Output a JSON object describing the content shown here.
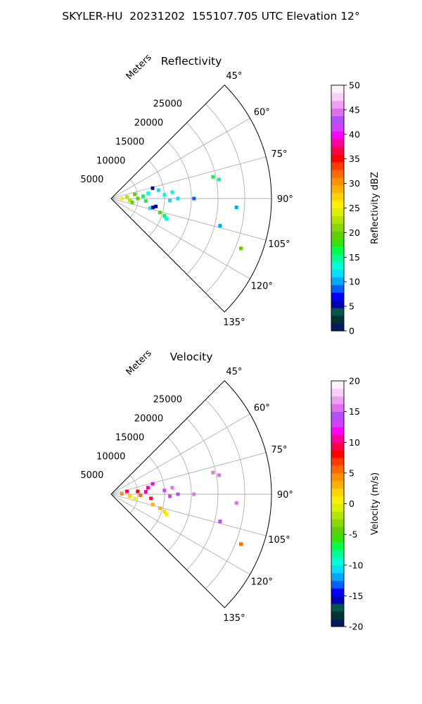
{
  "title": "SKYLER-HU  20231202  155107.705 UTC Elevation 12°",
  "chart_data": [
    {
      "type": "polar-scatter",
      "title": "Reflectivity",
      "radial_label": "Meters",
      "radial_ticks": [
        5000,
        10000,
        15000,
        20000,
        25000
      ],
      "radial_max": 30000,
      "azimuth_range_deg": [
        45,
        135
      ],
      "azimuth_ticks": [
        "45°",
        "60°",
        "75°",
        "90°",
        "105°",
        "120°",
        "135°"
      ],
      "grid": true,
      "colorbar": {
        "label": "Reflectivity dBZ",
        "min": 0,
        "max": 50,
        "ticks": [
          0,
          5,
          10,
          15,
          20,
          25,
          30,
          35,
          40,
          45,
          50
        ],
        "colors": [
          "#041a5e",
          "#003333",
          "#04554b",
          "#0000b0",
          "#0000ff",
          "#0060ff",
          "#00a8ff",
          "#00e0ff",
          "#00ffd8",
          "#00ff90",
          "#00ff4a",
          "#36e40a",
          "#5ed003",
          "#8ad800",
          "#b4e400",
          "#dcef00",
          "#fff000",
          "#ffd400",
          "#ffb000",
          "#ff9000",
          "#ff6a00",
          "#ff3c00",
          "#ff0000",
          "#ff0048",
          "#ff00a0",
          "#ff00ff",
          "#d040ff",
          "#b050ff",
          "#e070f0",
          "#f0a0f0",
          "#f8d0f8",
          "#fff0ff"
        ]
      },
      "points": [
        {
          "r": 5000,
          "az": 90,
          "v": 20
        },
        {
          "r": 2000,
          "az": 90,
          "v": 25
        },
        {
          "r": 3000,
          "az": 84,
          "v": 22
        },
        {
          "r": 3500,
          "az": 96,
          "v": 23
        },
        {
          "r": 4000,
          "az": 100,
          "v": 19
        },
        {
          "r": 4500,
          "az": 80,
          "v": 19
        },
        {
          "r": 6000,
          "az": 86,
          "v": 16
        },
        {
          "r": 6500,
          "az": 94,
          "v": 17
        },
        {
          "r": 7000,
          "az": 82,
          "v": 14
        },
        {
          "r": 7500,
          "az": 104,
          "v": 12
        },
        {
          "r": 8000,
          "az": 102,
          "v": 6
        },
        {
          "r": 8500,
          "az": 100,
          "v": 5
        },
        {
          "r": 8000,
          "az": 76,
          "v": 6
        },
        {
          "r": 9000,
          "az": 80,
          "v": 12
        },
        {
          "r": 9500,
          "az": 106,
          "v": 18
        },
        {
          "r": 10500,
          "az": 108,
          "v": 17
        },
        {
          "r": 11000,
          "az": 110,
          "v": 13
        },
        {
          "r": 10000,
          "az": 86,
          "v": 14
        },
        {
          "r": 11500,
          "az": 84,
          "v": 13
        },
        {
          "r": 11000,
          "az": 92,
          "v": 12
        },
        {
          "r": 12500,
          "az": 90,
          "v": 11
        },
        {
          "r": 15500,
          "az": 90,
          "v": 9
        },
        {
          "r": 20500,
          "az": 80,
          "v": 15
        },
        {
          "r": 19500,
          "az": 78,
          "v": 16
        },
        {
          "r": 23500,
          "az": 94,
          "v": 10
        },
        {
          "r": 21000,
          "az": 104,
          "v": 10
        },
        {
          "r": 26000,
          "az": 111,
          "v": 20
        }
      ]
    },
    {
      "type": "polar-scatter",
      "title": "Velocity",
      "radial_label": "Meters",
      "radial_ticks": [
        5000,
        10000,
        15000,
        20000,
        25000
      ],
      "radial_max": 30000,
      "azimuth_range_deg": [
        45,
        135
      ],
      "azimuth_ticks": [
        "45°",
        "60°",
        "75°",
        "90°",
        "105°",
        "120°",
        "135°"
      ],
      "grid": true,
      "colorbar": {
        "label": "Velocity (m/s)",
        "min": -20,
        "max": 20,
        "ticks": [
          -20,
          -15,
          -10,
          -5,
          0,
          5,
          10,
          15,
          20
        ],
        "colors": [
          "#041a5e",
          "#003333",
          "#04554b",
          "#0000b0",
          "#0000ff",
          "#0060ff",
          "#00a8ff",
          "#00e0ff",
          "#00ffd8",
          "#00ff90",
          "#00ff4a",
          "#36e40a",
          "#5ed003",
          "#8ad800",
          "#b4e400",
          "#dcef00",
          "#fff000",
          "#ffd400",
          "#ffb000",
          "#ff9000",
          "#ff6a00",
          "#ff3c00",
          "#ff0000",
          "#ff0048",
          "#ff00a0",
          "#ff00ff",
          "#d040ff",
          "#b050ff",
          "#e070f0",
          "#f0a0f0",
          "#f8d0f8",
          "#fff0ff"
        ]
      },
      "points": [
        {
          "r": 2000,
          "az": 88,
          "v": 4
        },
        {
          "r": 3000,
          "az": 80,
          "v": 9
        },
        {
          "r": 3500,
          "az": 96,
          "v": 2
        },
        {
          "r": 4500,
          "az": 100,
          "v": 1
        },
        {
          "r": 5000,
          "az": 84,
          "v": 8
        },
        {
          "r": 5500,
          "az": 92,
          "v": 6
        },
        {
          "r": 6500,
          "az": 86,
          "v": 10
        },
        {
          "r": 7000,
          "az": 80,
          "v": 10
        },
        {
          "r": 7500,
          "az": 96,
          "v": 9
        },
        {
          "r": 8000,
          "az": 104,
          "v": 3
        },
        {
          "r": 8000,
          "az": 76,
          "v": 12
        },
        {
          "r": 9500,
          "az": 106,
          "v": 3
        },
        {
          "r": 10500,
          "az": 108,
          "v": 2
        },
        {
          "r": 11000,
          "az": 110,
          "v": 1
        },
        {
          "r": 10000,
          "az": 86,
          "v": 13
        },
        {
          "r": 11500,
          "az": 84,
          "v": 15
        },
        {
          "r": 11000,
          "az": 92,
          "v": 13
        },
        {
          "r": 12500,
          "az": 90,
          "v": 14
        },
        {
          "r": 15500,
          "az": 90,
          "v": 16
        },
        {
          "r": 20500,
          "az": 80,
          "v": 16
        },
        {
          "r": 19500,
          "az": 78,
          "v": 16
        },
        {
          "r": 23500,
          "az": 94,
          "v": 15
        },
        {
          "r": 21000,
          "az": 104,
          "v": 14
        },
        {
          "r": 26000,
          "az": 111,
          "v": 6
        }
      ]
    }
  ]
}
